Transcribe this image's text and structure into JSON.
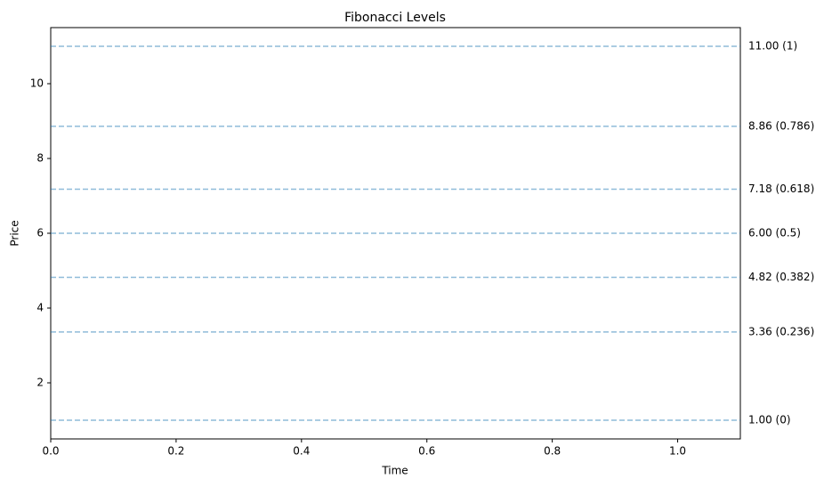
{
  "chart_data": {
    "type": "hline",
    "title": "Fibonacci Levels",
    "x_label": "Time",
    "y_label": "Price",
    "values": [
      11,
      8.86,
      7.18,
      6,
      4.82,
      3.36,
      1
    ],
    "value_labels": [
      "11.00 (1)",
      "8.86 (0.786)",
      "7.18 (0.618)",
      "6.00 (0.5)",
      "4.82 (0.382)",
      "3.36 (0.236)",
      "1.00 (0)"
    ],
    "color": "#1f77b4",
    "alpha": 0.5,
    "dashed": true,
    "xlim": [
      0,
      1.1
    ],
    "xticks": [
      {
        "value": 0,
        "label": "0.0"
      },
      0.2,
      0.4,
      0.6,
      0.8,
      {
        "value": 1,
        "label": "1.0"
      }
    ],
    "ylim": [
      0.5,
      11.5
    ],
    "yticks": [
      2,
      4,
      6,
      8,
      10
    ]
  }
}
